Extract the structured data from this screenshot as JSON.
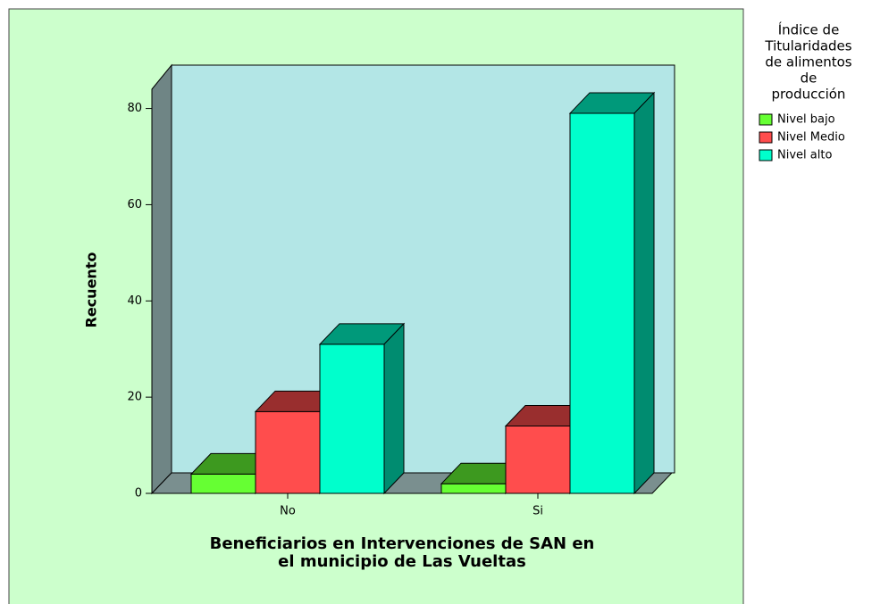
{
  "chart_data": {
    "type": "bar3d",
    "categories": [
      "No",
      "Si"
    ],
    "series": [
      {
        "name": "Nivel bajo",
        "color": "#66ff33",
        "values": [
          4,
          2
        ]
      },
      {
        "name": "Nivel Medio",
        "color": "#ff4d4d",
        "values": [
          17,
          14
        ]
      },
      {
        "name": "Nivel alto",
        "color": "#00ffcc",
        "values": [
          31,
          79
        ]
      }
    ],
    "ylim": [
      0,
      84
    ],
    "yticks": [
      0,
      20,
      40,
      60,
      80
    ],
    "ylabel": "Recuento",
    "xlabel": [
      "Beneficiarios en Intervenciones de SAN en",
      "el municipio de Las Vueltas"
    ],
    "legend_title": [
      "Índice de",
      "Titularidades",
      "de alimentos",
      "de",
      "producción"
    ],
    "legend": "right"
  }
}
